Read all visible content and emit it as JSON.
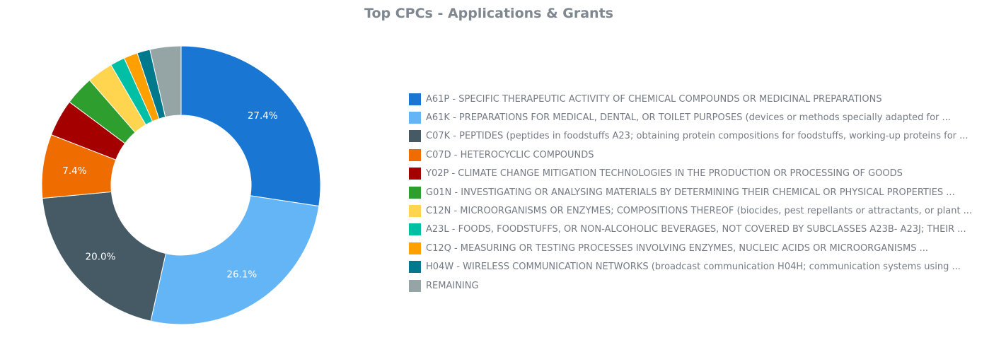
{
  "chart_data": {
    "type": "pie",
    "title": "Top CPCs - Applications & Grants",
    "donut": true,
    "legend_position": "right",
    "slices": [
      {
        "name": "A61P - SPECIFIC THERAPEUTIC ACTIVITY OF CHEMICAL COMPOUNDS OR MEDICINAL PREPARATIONS",
        "value": 27.4,
        "color": "#1976d2",
        "label": "27.4%"
      },
      {
        "name": "A61K - PREPARATIONS FOR MEDICAL, DENTAL, OR TOILET PURPOSES (devices or methods specially adapted for ...",
        "value": 26.1,
        "color": "#64b5f6",
        "label": "26.1%"
      },
      {
        "name": "C07K - PEPTIDES (peptides in foodstuffs A23; obtaining protein compositions for foodstuffs, working-up proteins for ...",
        "value": 20.0,
        "color": "#455a64",
        "label": "20.0%"
      },
      {
        "name": "C07D - HETEROCYCLIC COMPOUNDS",
        "value": 7.4,
        "color": "#ef6c00",
        "label": "7.4%"
      },
      {
        "name": "Y02P - CLIMATE CHANGE MITIGATION TECHNOLOGIES IN THE PRODUCTION OR PROCESSING OF GOODS",
        "value": 4.3,
        "color": "#a50000",
        "label": ""
      },
      {
        "name": "G01N - INVESTIGATING OR ANALYSING MATERIALS BY DETERMINING THEIR CHEMICAL OR PHYSICAL PROPERTIES ...",
        "value": 3.4,
        "color": "#2e9e2e",
        "label": ""
      },
      {
        "name": "C12N - MICROORGANISMS OR ENZYMES; COMPOSITIONS THEREOF (biocides, pest repellants or attractants, or plant ...",
        "value": 3.0,
        "color": "#ffd54f",
        "label": ""
      },
      {
        "name": "A23L - FOODS, FOODSTUFFS, OR NON-ALCOHOLIC BEVERAGES, NOT COVERED BY SUBCLASSES A23B- A23J; THEIR ...",
        "value": 1.7,
        "color": "#00bfa5",
        "label": ""
      },
      {
        "name": "C12Q - MEASURING OR TESTING PROCESSES INVOLVING ENZYMES, NUCLEIC ACIDS OR MICROORGANISMS ...",
        "value": 1.6,
        "color": "#ff9f00",
        "label": ""
      },
      {
        "name": "H04W - WIRELESS COMMUNICATION NETWORKS (broadcast communication H04H; communication systems using ...",
        "value": 1.5,
        "color": "#00798c",
        "label": ""
      },
      {
        "name": "REMAINING",
        "value": 3.6,
        "color": "#95a5a6",
        "label": ""
      }
    ]
  }
}
